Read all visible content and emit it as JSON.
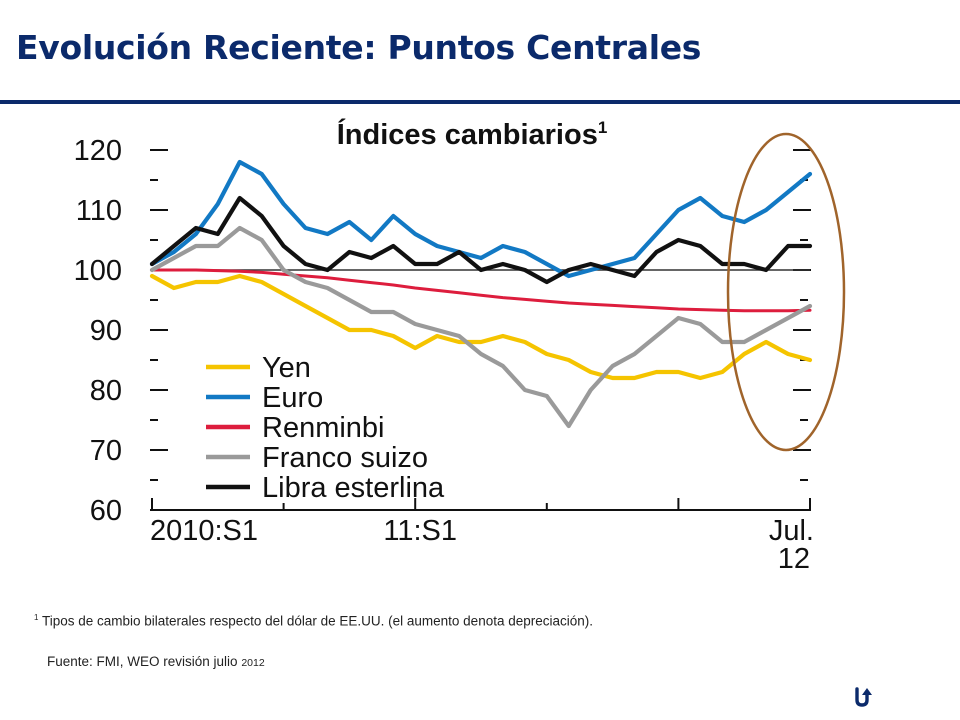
{
  "slide": {
    "title": "Evolución Reciente: Puntos Centrales",
    "footnote_marker": "1",
    "footnote": " Tipos de cambio bilaterales respecto del dólar de EE.UU. (el aumento denota depreciación).",
    "source": "Fuente: FMI, WEO revisión julio ",
    "source_year": "2012"
  },
  "chart_data": {
    "type": "line",
    "title": "Índices cambiarios",
    "title_footnote": "1",
    "x_tick_labels": [
      "2010:S1",
      "11:S1",
      "Jul."
    ],
    "x_tick_sublabel": "12",
    "x_ticks": [
      "2010:S1",
      "11:S1",
      "2012:S1",
      "Jul. 2012"
    ],
    "xlim": [
      "2010-01",
      "2012-07"
    ],
    "y_ticks": [
      60,
      70,
      80,
      90,
      100,
      110,
      120
    ],
    "ylim": [
      60,
      120
    ],
    "reference_line": 100,
    "grid": false,
    "legend_position": "bottom-left",
    "x": [
      "2010-01",
      "2010-02",
      "2010-03",
      "2010-04",
      "2010-05",
      "2010-06",
      "2010-07",
      "2010-08",
      "2010-09",
      "2010-10",
      "2010-11",
      "2010-12",
      "2011-01",
      "2011-02",
      "2011-03",
      "2011-04",
      "2011-05",
      "2011-06",
      "2011-07",
      "2011-08",
      "2011-09",
      "2011-10",
      "2011-11",
      "2011-12",
      "2012-01",
      "2012-02",
      "2012-03",
      "2012-04",
      "2012-05",
      "2012-06",
      "2012-07"
    ],
    "series": [
      {
        "name": "Yen",
        "color": "#f5c400",
        "values": [
          99,
          97,
          98,
          98,
          99,
          98,
          96,
          94,
          92,
          90,
          90,
          89,
          87,
          89,
          88,
          88,
          89,
          88,
          86,
          85,
          83,
          82,
          82,
          83,
          83,
          82,
          83,
          86,
          88,
          86,
          85
        ]
      },
      {
        "name": "Euro",
        "color": "#1279c4",
        "values": [
          101,
          103,
          106,
          111,
          118,
          116,
          111,
          107,
          106,
          108,
          105,
          109,
          106,
          104,
          103,
          102,
          104,
          103,
          101,
          99,
          100,
          101,
          102,
          106,
          110,
          112,
          109,
          108,
          110,
          113,
          116
        ]
      },
      {
        "name": "Renminbi",
        "color": "#dd1d3d",
        "values": [
          100,
          100,
          100,
          99.9,
          99.8,
          99.6,
          99.3,
          99,
          98.7,
          98.3,
          97.9,
          97.5,
          97,
          96.6,
          96.2,
          95.8,
          95.4,
          95.1,
          94.8,
          94.5,
          94.3,
          94.1,
          93.9,
          93.7,
          93.5,
          93.4,
          93.3,
          93.2,
          93.2,
          93.2,
          93.3
        ]
      },
      {
        "name": "Franco suizo",
        "color": "#9a9a9a",
        "values": [
          100,
          102,
          104,
          104,
          107,
          105,
          100,
          98,
          97,
          95,
          93,
          93,
          91,
          90,
          89,
          86,
          84,
          80,
          79,
          74,
          80,
          84,
          86,
          89,
          92,
          91,
          88,
          88,
          90,
          92,
          94
        ]
      },
      {
        "name": "Libra esterlina",
        "color": "#111111",
        "values": [
          101,
          104,
          107,
          106,
          112,
          109,
          104,
          101,
          100,
          103,
          102,
          104,
          101,
          101,
          103,
          100,
          101,
          100,
          98,
          100,
          101,
          100,
          99,
          103,
          105,
          104,
          101,
          101,
          100,
          104,
          104
        ]
      }
    ]
  }
}
